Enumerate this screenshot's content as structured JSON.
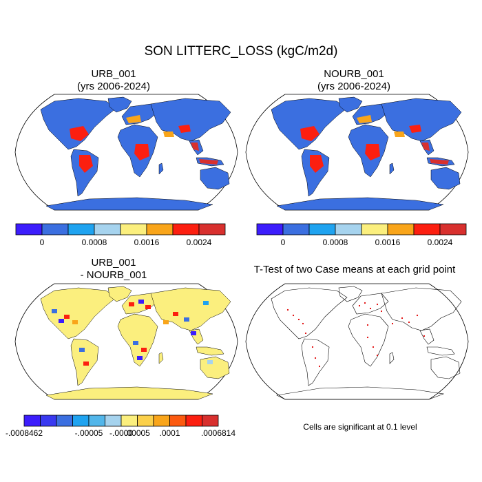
{
  "figure_title": "SON LITTERC_LOSS (kgC/m2d)",
  "panels": [
    {
      "id": "urb",
      "title_line1": "URB_001",
      "title_line2": "(yrs 2006-2024)"
    },
    {
      "id": "nourb",
      "title_line1": "NOURB_001",
      "title_line2": "(yrs 2006-2024)"
    },
    {
      "id": "diff",
      "title_line1": "URB_001",
      "title_line2": "- NOURB_001"
    },
    {
      "id": "ttest",
      "title_line1": "T-Test of two Case means at each grid point"
    }
  ],
  "colorbar_main": {
    "colors": [
      "#3c1dfc",
      "#3b6fe0",
      "#1fa3f0",
      "#a6d3ee",
      "#fbef7e",
      "#f9a51a",
      "#fc1f10",
      "#d8302e"
    ],
    "tick_labels": [
      "0",
      "0.0008",
      "0.0016",
      "0.0024"
    ]
  },
  "colorbar_diff": {
    "colors": [
      "#3c1dfc",
      "#3939f0",
      "#3b6fe0",
      "#1fa3f0",
      "#52b6ea",
      "#a6d3ee",
      "#fbef7e",
      "#fbd04a",
      "#f9a51a",
      "#fc5a10",
      "#fc1f10",
      "#d8302e"
    ],
    "tick_labels": [
      "-.0008462",
      "-.00005",
      "-.0000",
      ".00005",
      ".0001",
      ".0006814"
    ]
  },
  "note": "Cells are significant at 0.1 level",
  "colors": {
    "ocean": "#ffffff",
    "land_main": "#3b6fe0",
    "land_diff": "#fbef7e",
    "hot": "#fc1f10",
    "warm": "#f9a51a",
    "dark_red": "#d8302e",
    "sig_dot": "#e00000",
    "coast": "#000000"
  }
}
